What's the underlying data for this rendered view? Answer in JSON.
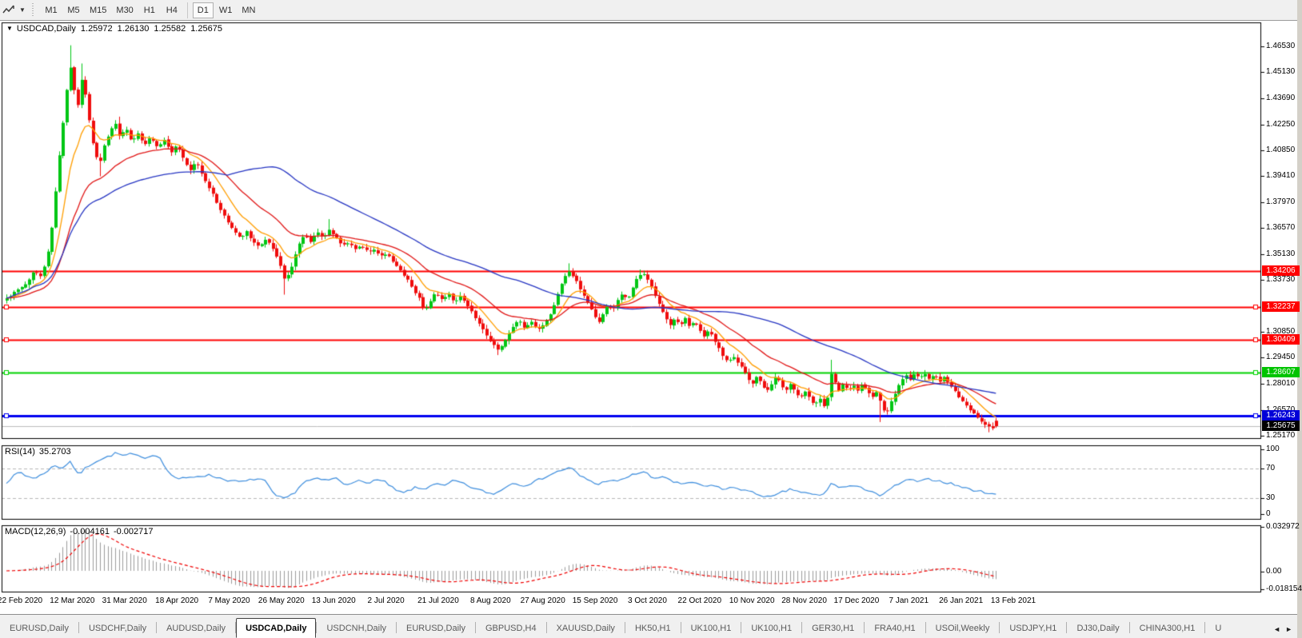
{
  "toolbar": {
    "timeframes": [
      "M1",
      "M5",
      "M15",
      "M30",
      "H1",
      "H4",
      "D1",
      "W1",
      "MN"
    ],
    "active_timeframe": "D1"
  },
  "chart": {
    "title_symbol": "USDCAD,Daily",
    "open": "1.25972",
    "high": "1.26130",
    "low": "1.25582",
    "close": "1.25675"
  },
  "price_axis": {
    "ticks": [
      "1.46530",
      "1.45130",
      "1.43690",
      "1.42250",
      "1.40850",
      "1.39410",
      "1.37970",
      "1.36570",
      "1.35130",
      "1.33730",
      "1.30850",
      "1.29450",
      "1.28010",
      "1.26570",
      "1.25170"
    ]
  },
  "chart_data": {
    "type": "candlestick",
    "symbol": "USDCAD",
    "timeframe": "Daily",
    "visible_bars": 265,
    "y_axis_range": {
      "top_price": 1.47859,
      "bottom_price": 1.24973
    },
    "up_color": "#00c614",
    "down_color": "#ef0d0d",
    "close_waypoints": [
      [
        8,
        1.327
      ],
      [
        20,
        1.331
      ],
      [
        32,
        1.3345
      ],
      [
        42,
        1.342
      ],
      [
        50,
        1.3395
      ],
      [
        58,
        1.348
      ],
      [
        64,
        1.365
      ],
      [
        70,
        1.39
      ],
      [
        76,
        1.415
      ],
      [
        82,
        1.438
      ],
      [
        87,
        1.455
      ],
      [
        92,
        1.442
      ],
      [
        97,
        1.433
      ],
      [
        102,
        1.448
      ],
      [
        107,
        1.438
      ],
      [
        113,
        1.418
      ],
      [
        119,
        1.406
      ],
      [
        124,
        1.4
      ],
      [
        130,
        1.411
      ],
      [
        137,
        1.419
      ],
      [
        144,
        1.423
      ],
      [
        150,
        1.415
      ],
      [
        157,
        1.421
      ],
      [
        164,
        1.413
      ],
      [
        172,
        1.418
      ],
      [
        180,
        1.411
      ],
      [
        188,
        1.416
      ],
      [
        196,
        1.41
      ],
      [
        205,
        1.414
      ],
      [
        213,
        1.407
      ],
      [
        221,
        1.411
      ],
      [
        229,
        1.403
      ],
      [
        237,
        1.397
      ],
      [
        245,
        1.402
      ],
      [
        253,
        1.394
      ],
      [
        260,
        1.389
      ],
      [
        268,
        1.382
      ],
      [
        276,
        1.375
      ],
      [
        284,
        1.369
      ],
      [
        292,
        1.364
      ],
      [
        300,
        1.36
      ],
      [
        308,
        1.364
      ],
      [
        316,
        1.358
      ],
      [
        324,
        1.355
      ],
      [
        332,
        1.36
      ],
      [
        340,
        1.355
      ],
      [
        348,
        1.348
      ],
      [
        356,
        1.336
      ],
      [
        364,
        1.344
      ],
      [
        372,
        1.356
      ],
      [
        380,
        1.362
      ],
      [
        388,
        1.358
      ],
      [
        396,
        1.364
      ],
      [
        404,
        1.36
      ],
      [
        412,
        1.365
      ],
      [
        420,
        1.36
      ],
      [
        428,
        1.356
      ],
      [
        436,
        1.358
      ],
      [
        444,
        1.354
      ],
      [
        452,
        1.356
      ],
      [
        460,
        1.352
      ],
      [
        468,
        1.354
      ],
      [
        476,
        1.35
      ],
      [
        484,
        1.352
      ],
      [
        492,
        1.346
      ],
      [
        500,
        1.342
      ],
      [
        508,
        1.338
      ],
      [
        516,
        1.332
      ],
      [
        524,
        1.327
      ],
      [
        530,
        1.32
      ],
      [
        537,
        1.325
      ],
      [
        544,
        1.33
      ],
      [
        552,
        1.326
      ],
      [
        560,
        1.33
      ],
      [
        568,
        1.325
      ],
      [
        576,
        1.329
      ],
      [
        584,
        1.323
      ],
      [
        592,
        1.318
      ],
      [
        600,
        1.312
      ],
      [
        608,
        1.306
      ],
      [
        616,
        1.302
      ],
      [
        622,
        1.299
      ],
      [
        628,
        1.301
      ],
      [
        634,
        1.306
      ],
      [
        640,
        1.311
      ],
      [
        648,
        1.315
      ],
      [
        656,
        1.31
      ],
      [
        664,
        1.314
      ],
      [
        672,
        1.309
      ],
      [
        680,
        1.313
      ],
      [
        688,
        1.318
      ],
      [
        694,
        1.326
      ],
      [
        700,
        1.333
      ],
      [
        706,
        1.339
      ],
      [
        712,
        1.342
      ],
      [
        718,
        1.338
      ],
      [
        724,
        1.333
      ],
      [
        730,
        1.328
      ],
      [
        736,
        1.323
      ],
      [
        742,
        1.318
      ],
      [
        748,
        1.313
      ],
      [
        754,
        1.319
      ],
      [
        760,
        1.324
      ],
      [
        766,
        1.32
      ],
      [
        772,
        1.326
      ],
      [
        778,
        1.33
      ],
      [
        784,
        1.326
      ],
      [
        790,
        1.332
      ],
      [
        796,
        1.338
      ],
      [
        802,
        1.341
      ],
      [
        808,
        1.339
      ],
      [
        814,
        1.333
      ],
      [
        820,
        1.327
      ],
      [
        826,
        1.322
      ],
      [
        832,
        1.316
      ],
      [
        838,
        1.312
      ],
      [
        844,
        1.316
      ],
      [
        850,
        1.312
      ],
      [
        856,
        1.316
      ],
      [
        862,
        1.311
      ],
      [
        868,
        1.315
      ],
      [
        874,
        1.31
      ],
      [
        880,
        1.306
      ],
      [
        886,
        1.31
      ],
      [
        892,
        1.305
      ],
      [
        898,
        1.3
      ],
      [
        904,
        1.295
      ],
      [
        910,
        1.292
      ],
      [
        916,
        1.296
      ],
      [
        922,
        1.292
      ],
      [
        928,
        1.288
      ],
      [
        934,
        1.284
      ],
      [
        940,
        1.28
      ],
      [
        946,
        1.284
      ],
      [
        952,
        1.28
      ],
      [
        958,
        1.276
      ],
      [
        964,
        1.28
      ],
      [
        970,
        1.284
      ],
      [
        976,
        1.28
      ],
      [
        982,
        1.276
      ],
      [
        988,
        1.28
      ],
      [
        994,
        1.276
      ],
      [
        1000,
        1.272
      ],
      [
        1006,
        1.276
      ],
      [
        1012,
        1.272
      ],
      [
        1018,
        1.268
      ],
      [
        1024,
        1.272
      ],
      [
        1030,
        1.268
      ],
      [
        1036,
        1.274
      ],
      [
        1040,
        1.289
      ],
      [
        1044,
        1.28
      ],
      [
        1048,
        1.276
      ],
      [
        1054,
        1.28
      ],
      [
        1060,
        1.276
      ],
      [
        1066,
        1.28
      ],
      [
        1072,
        1.276
      ],
      [
        1078,
        1.28
      ],
      [
        1084,
        1.276
      ],
      [
        1090,
        1.272
      ],
      [
        1096,
        1.276
      ],
      [
        1102,
        1.268
      ],
      [
        1108,
        1.263
      ],
      [
        1114,
        1.27
      ],
      [
        1120,
        1.276
      ],
      [
        1126,
        1.281
      ],
      [
        1132,
        1.285
      ],
      [
        1138,
        1.282
      ],
      [
        1144,
        1.286
      ],
      [
        1150,
        1.283
      ],
      [
        1156,
        1.286
      ],
      [
        1162,
        1.282
      ],
      [
        1168,
        1.285
      ],
      [
        1174,
        1.281
      ],
      [
        1180,
        1.284
      ],
      [
        1186,
        1.28
      ],
      [
        1192,
        1.277
      ],
      [
        1198,
        1.273
      ],
      [
        1204,
        1.27
      ],
      [
        1210,
        1.267
      ],
      [
        1216,
        1.264
      ],
      [
        1222,
        1.261
      ],
      [
        1228,
        1.259
      ],
      [
        1234,
        1.257
      ],
      [
        1240,
        1.255
      ],
      [
        1248,
        1.25675
      ]
    ],
    "wick_overrides": [
      [
        87,
        "h",
        1.466
      ],
      [
        102,
        "h",
        1.456
      ],
      [
        124,
        "l",
        1.394
      ],
      [
        148,
        "h",
        1.4268
      ],
      [
        356,
        "l",
        1.329
      ],
      [
        412,
        "h",
        1.3705
      ],
      [
        622,
        "l",
        1.2958
      ],
      [
        712,
        "h",
        1.3462
      ],
      [
        802,
        "h",
        1.3428
      ],
      [
        1040,
        "h",
        1.2932
      ],
      [
        1102,
        "l",
        1.259
      ],
      [
        1234,
        "l",
        1.2534
      ]
    ],
    "moving_averages": [
      {
        "name": "ma-fast",
        "type": "ema",
        "period": 10,
        "color": "#ff9e00"
      },
      {
        "name": "ma-mid",
        "type": "ema",
        "period": 25,
        "color": "#e11616"
      },
      {
        "name": "ma-slow",
        "type": "sma",
        "period": 60,
        "color": "#2736c3"
      }
    ],
    "hlines": [
      {
        "price": 1.34206,
        "label": "1.34206",
        "color": "#ff0000",
        "width": 2,
        "handles": false,
        "badge": "#ff0000"
      },
      {
        "price": 1.32237,
        "label": "1.32237",
        "color": "#ff0000",
        "width": 2,
        "handles": true,
        "badge": "#ff0000"
      },
      {
        "price": 1.30409,
        "label": "1.30409",
        "color": "#ff0000",
        "width": 2,
        "handles": true,
        "badge": "#ff0000"
      },
      {
        "price": 1.28607,
        "label": "1.28607",
        "color": "#00d300",
        "width": 2,
        "handles": true,
        "badge": "#00c400"
      },
      {
        "price": 1.26243,
        "label": "1.26243",
        "color": "#0000f0",
        "width": 3,
        "handles": true,
        "badge": "#0000d8"
      },
      {
        "price": 1.25675,
        "label": "1.25675",
        "color": "#bdbdbd",
        "width": 1,
        "handles": false,
        "badge": "#000000"
      }
    ]
  },
  "rsi": {
    "label": "RSI(14)",
    "value": "35.2703",
    "line_color": "#3e8ede",
    "axis_labels": [
      "100",
      "70",
      "30",
      "0"
    ],
    "levels": [
      70,
      30
    ],
    "waypoints": [
      [
        0,
        44
      ],
      [
        15,
        58
      ],
      [
        25,
        66
      ],
      [
        32,
        60
      ],
      [
        45,
        57
      ],
      [
        58,
        66
      ],
      [
        68,
        74
      ],
      [
        78,
        71
      ],
      [
        88,
        80
      ],
      [
        98,
        61
      ],
      [
        108,
        72
      ],
      [
        120,
        80
      ],
      [
        133,
        85
      ],
      [
        145,
        91
      ],
      [
        155,
        87
      ],
      [
        165,
        90
      ],
      [
        178,
        84
      ],
      [
        190,
        88
      ],
      [
        200,
        86
      ],
      [
        210,
        65
      ],
      [
        222,
        56
      ],
      [
        235,
        57
      ],
      [
        248,
        60
      ],
      [
        262,
        61
      ],
      [
        275,
        57
      ],
      [
        290,
        53
      ],
      [
        305,
        52
      ],
      [
        318,
        56
      ],
      [
        330,
        55
      ],
      [
        343,
        34
      ],
      [
        355,
        29
      ],
      [
        367,
        36
      ],
      [
        380,
        52
      ],
      [
        395,
        56
      ],
      [
        408,
        54
      ],
      [
        420,
        57
      ],
      [
        432,
        48
      ],
      [
        445,
        54
      ],
      [
        458,
        50
      ],
      [
        470,
        55
      ],
      [
        483,
        51
      ],
      [
        495,
        40
      ],
      [
        505,
        37
      ],
      [
        518,
        44
      ],
      [
        530,
        42
      ],
      [
        543,
        50
      ],
      [
        555,
        46
      ],
      [
        568,
        54
      ],
      [
        580,
        49
      ],
      [
        593,
        43
      ],
      [
        605,
        39
      ],
      [
        618,
        35
      ],
      [
        630,
        44
      ],
      [
        643,
        51
      ],
      [
        655,
        47
      ],
      [
        668,
        52
      ],
      [
        680,
        58
      ],
      [
        693,
        64
      ],
      [
        705,
        69
      ],
      [
        714,
        71
      ],
      [
        725,
        60
      ],
      [
        737,
        54
      ],
      [
        748,
        48
      ],
      [
        760,
        55
      ],
      [
        772,
        52
      ],
      [
        783,
        58
      ],
      [
        795,
        63
      ],
      [
        806,
        66
      ],
      [
        818,
        55
      ],
      [
        830,
        60
      ],
      [
        842,
        52
      ],
      [
        855,
        48
      ],
      [
        868,
        52
      ],
      [
        880,
        45
      ],
      [
        893,
        48
      ],
      [
        905,
        41
      ],
      [
        918,
        45
      ],
      [
        930,
        41
      ],
      [
        942,
        37
      ],
      [
        955,
        33
      ],
      [
        965,
        31
      ],
      [
        978,
        38
      ],
      [
        990,
        42
      ],
      [
        1002,
        38
      ],
      [
        1015,
        35
      ],
      [
        1028,
        33
      ],
      [
        1040,
        50
      ],
      [
        1052,
        44
      ],
      [
        1065,
        47
      ],
      [
        1078,
        43
      ],
      [
        1090,
        40
      ],
      [
        1102,
        32
      ],
      [
        1114,
        43
      ],
      [
        1126,
        51
      ],
      [
        1138,
        55
      ],
      [
        1150,
        52
      ],
      [
        1162,
        56
      ],
      [
        1175,
        53
      ],
      [
        1188,
        50
      ],
      [
        1200,
        46
      ],
      [
        1212,
        42
      ],
      [
        1225,
        39
      ],
      [
        1238,
        37
      ],
      [
        1248,
        35.27
      ]
    ]
  },
  "macd": {
    "label": "MACD(12,26,9)",
    "value_main": "-0.004161",
    "value_signal": "-0.002717",
    "axis_labels": [
      "0.032972",
      "0.00",
      "-0.018154"
    ],
    "histogram_color": "#9c9c9c",
    "signal_color": "#f00000",
    "params": {
      "fast": 12,
      "slow": 26,
      "signal": 9
    }
  },
  "date_axis": {
    "labels": [
      "22 Feb 2020",
      "12 Mar 2020",
      "31 Mar 2020",
      "18 Apr 2020",
      "7 May 2020",
      "26 May 2020",
      "13 Jun 2020",
      "2 Jul 2020",
      "21 Jul 2020",
      "8 Aug 2020",
      "27 Aug 2020",
      "15 Sep 2020",
      "3 Oct 2020",
      "22 Oct 2020",
      "10 Nov 2020",
      "28 Nov 2020",
      "17 Dec 2020",
      "7 Jan 2021",
      "26 Jan 2021",
      "13 Feb 2021"
    ]
  },
  "tabs": {
    "items": [
      "EURUSD,Daily",
      "USDCHF,Daily",
      "AUDUSD,Daily",
      "USDCAD,Daily",
      "USDCNH,Daily",
      "EURUSD,Daily",
      "GBPUSD,H4",
      "XAUUSD,Daily",
      "HK50,H1",
      "UK100,H1",
      "UK100,H1",
      "GER30,H1",
      "FRA40,H1",
      "USOil,Weekly",
      "USDJPY,H1",
      "DJ30,Daily",
      "CHINA300,H1",
      "U"
    ],
    "active_index": 3,
    "left_arrow": "◄",
    "right_arrow": "►"
  }
}
